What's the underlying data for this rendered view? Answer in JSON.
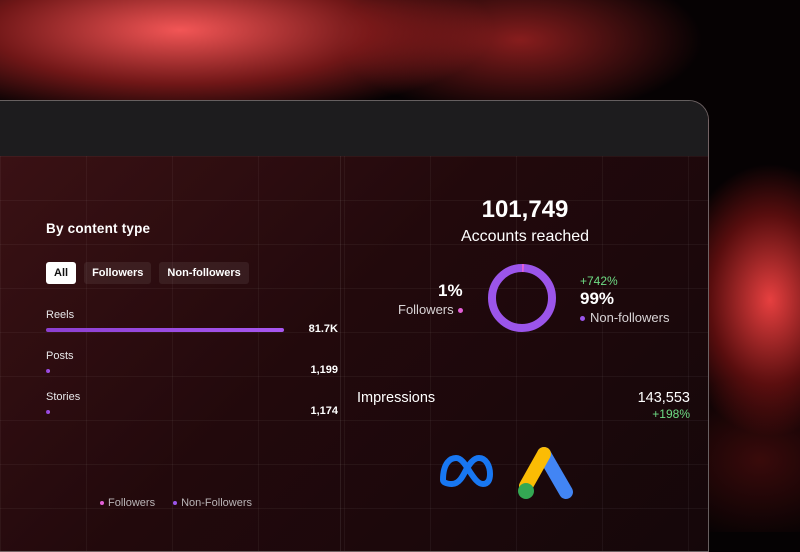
{
  "content_type": {
    "title": "By content type",
    "filters": [
      {
        "label": "All",
        "active": true
      },
      {
        "label": "Followers",
        "active": false
      },
      {
        "label": "Non-followers",
        "active": false
      }
    ],
    "metrics": [
      {
        "label": "Reels",
        "value": "81.7K",
        "fill": 1.0
      },
      {
        "label": "Posts",
        "value": "1,199",
        "fill": 0.015
      },
      {
        "label": "Stories",
        "value": "1,174",
        "fill": 0.015
      }
    ],
    "legend": [
      {
        "label": "Followers",
        "color": "#e25fd6"
      },
      {
        "label": "Non-Followers",
        "color": "#9b55ea"
      }
    ]
  },
  "reach": {
    "value": "101,749",
    "label": "Accounts reached",
    "followers": {
      "percent": "1%",
      "label": "Followers",
      "color": "#e25fd6",
      "share": 0.01
    },
    "non_followers": {
      "change": "+742%",
      "percent": "99%",
      "label": "Non-followers",
      "color": "#9b55ea",
      "share": 0.99
    }
  },
  "impressions": {
    "label": "Impressions",
    "value": "143,553",
    "change": "+198%"
  },
  "logos": {
    "meta": "meta-logo-icon",
    "google_ads": "google-ads-logo-icon"
  }
}
